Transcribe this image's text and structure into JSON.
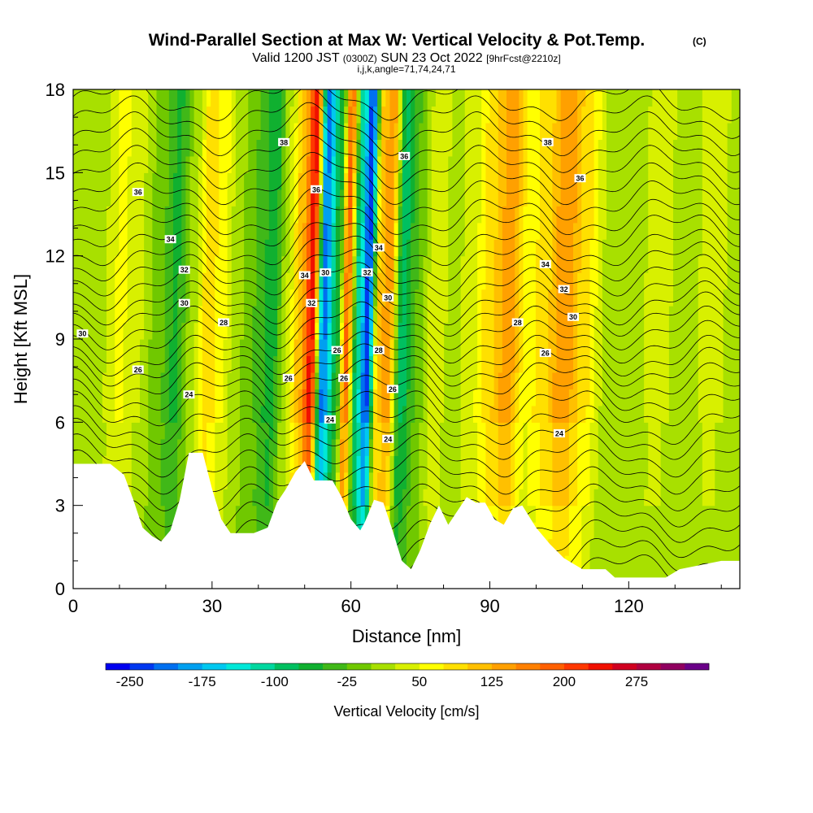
{
  "header": {
    "title": "Wind-Parallel Section at Max W: Vertical Velocity & Pot.Temp.",
    "title_mark": "(C)",
    "valid_prefix": "Valid 1200 JST",
    "valid_zulu": "(0300Z)",
    "valid_date": "SUN 23 Oct 2022",
    "forecast": "[9hrFcst@2210z]",
    "indices": "i,j,k,angle=71,74,24,71"
  },
  "chart_data": {
    "type": "heatmap",
    "title": "Wind-Parallel Section at Max W: Vertical Velocity & Pot.Temp.",
    "xlabel": "Distance [nm]",
    "ylabel": "Height [Kft MSL]",
    "xlim": [
      0,
      144
    ],
    "ylim": [
      0,
      18
    ],
    "x_ticks": [
      0,
      30,
      60,
      90,
      120
    ],
    "y_ticks": [
      0,
      3,
      6,
      9,
      12,
      15,
      18
    ],
    "grid": false,
    "colorbar": {
      "label": "Vertical Velocity [cm/s]",
      "placement": "bottom",
      "tick_labels": [
        "-250",
        "-175",
        "-100",
        "-25",
        "50",
        "125",
        "200",
        "275"
      ],
      "min": -275,
      "max": 325,
      "step": 25,
      "colors": [
        "#0000f0",
        "#0038f0",
        "#0070f0",
        "#00a0f0",
        "#00c8f0",
        "#00e8d8",
        "#00d8a0",
        "#00c060",
        "#10b030",
        "#40b818",
        "#70c800",
        "#a8e000",
        "#d8f000",
        "#ffff00",
        "#ffe000",
        "#ffc000",
        "#ffa000",
        "#ff8000",
        "#ff6000",
        "#ff3800",
        "#f01000",
        "#d00020",
        "#b00040",
        "#900060",
        "#6a0088"
      ]
    },
    "terrain_height_kft": [
      {
        "x": 0,
        "y": 4.5
      },
      {
        "x": 8,
        "y": 4.5
      },
      {
        "x": 11,
        "y": 4.1
      },
      {
        "x": 13,
        "y": 3.2
      },
      {
        "x": 15,
        "y": 2.2
      },
      {
        "x": 17,
        "y": 1.9
      },
      {
        "x": 19,
        "y": 1.7
      },
      {
        "x": 21,
        "y": 2.1
      },
      {
        "x": 23,
        "y": 3.2
      },
      {
        "x": 25,
        "y": 4.9
      },
      {
        "x": 28,
        "y": 4.9
      },
      {
        "x": 30,
        "y": 3.6
      },
      {
        "x": 32,
        "y": 2.5
      },
      {
        "x": 34,
        "y": 2.0
      },
      {
        "x": 39,
        "y": 2.0
      },
      {
        "x": 42,
        "y": 2.2
      },
      {
        "x": 44,
        "y": 3.1
      },
      {
        "x": 46,
        "y": 3.6
      },
      {
        "x": 48,
        "y": 4.2
      },
      {
        "x": 50,
        "y": 4.6
      },
      {
        "x": 52,
        "y": 3.9
      },
      {
        "x": 56,
        "y": 3.9
      },
      {
        "x": 58,
        "y": 3.3
      },
      {
        "x": 60,
        "y": 2.5
      },
      {
        "x": 62,
        "y": 2.1
      },
      {
        "x": 63,
        "y": 2.4
      },
      {
        "x": 65,
        "y": 3.2
      },
      {
        "x": 67,
        "y": 3.1
      },
      {
        "x": 69,
        "y": 2.1
      },
      {
        "x": 71,
        "y": 1.0
      },
      {
        "x": 73,
        "y": 0.7
      },
      {
        "x": 75,
        "y": 1.4
      },
      {
        "x": 77,
        "y": 2.3
      },
      {
        "x": 79,
        "y": 3.0
      },
      {
        "x": 81,
        "y": 2.3
      },
      {
        "x": 83,
        "y": 2.8
      },
      {
        "x": 85,
        "y": 3.3
      },
      {
        "x": 87,
        "y": 3.1
      },
      {
        "x": 89,
        "y": 3.1
      },
      {
        "x": 91,
        "y": 2.5
      },
      {
        "x": 93,
        "y": 2.3
      },
      {
        "x": 95,
        "y": 2.9
      },
      {
        "x": 97,
        "y": 3.0
      },
      {
        "x": 100,
        "y": 2.2
      },
      {
        "x": 103,
        "y": 1.6
      },
      {
        "x": 106,
        "y": 1.1
      },
      {
        "x": 110,
        "y": 0.7
      },
      {
        "x": 115,
        "y": 0.7
      },
      {
        "x": 117,
        "y": 0.4
      },
      {
        "x": 128,
        "y": 0.4
      },
      {
        "x": 131,
        "y": 0.7
      },
      {
        "x": 140,
        "y": 1.0
      },
      {
        "x": 144,
        "y": 1.0
      }
    ],
    "w_bands": [
      {
        "x": 0,
        "w": 0
      },
      {
        "x": 5,
        "w": 10
      },
      {
        "x": 10,
        "w": 55
      },
      {
        "x": 14,
        "w": 30
      },
      {
        "x": 18,
        "w": -10
      },
      {
        "x": 22,
        "w": -55
      },
      {
        "x": 26,
        "w": 20
      },
      {
        "x": 29,
        "w": 95
      },
      {
        "x": 32,
        "w": 60
      },
      {
        "x": 35,
        "w": 10
      },
      {
        "x": 39,
        "w": -25
      },
      {
        "x": 43,
        "w": -65
      },
      {
        "x": 46,
        "w": 25
      },
      {
        "x": 49,
        "w": 120
      },
      {
        "x": 51.5,
        "w": 240
      },
      {
        "x": 54,
        "w": -210
      },
      {
        "x": 57,
        "w": -60
      },
      {
        "x": 59,
        "w": 180
      },
      {
        "x": 61.5,
        "w": -110
      },
      {
        "x": 63.5,
        "w": -240
      },
      {
        "x": 66,
        "w": 110
      },
      {
        "x": 68,
        "w": 150
      },
      {
        "x": 71,
        "w": -90
      },
      {
        "x": 74,
        "w": -25
      },
      {
        "x": 78,
        "w": 45
      },
      {
        "x": 82,
        "w": 15
      },
      {
        "x": 86,
        "w": 40
      },
      {
        "x": 90,
        "w": 95
      },
      {
        "x": 94,
        "w": 140
      },
      {
        "x": 98,
        "w": 60
      },
      {
        "x": 102,
        "w": 95
      },
      {
        "x": 106,
        "w": 150
      },
      {
        "x": 110,
        "w": 90
      },
      {
        "x": 115,
        "w": 20
      },
      {
        "x": 120,
        "w": 10
      },
      {
        "x": 126,
        "w": 35
      },
      {
        "x": 132,
        "w": 15
      },
      {
        "x": 138,
        "w": 35
      },
      {
        "x": 144,
        "w": 10
      }
    ],
    "theta_isentropes": [
      {
        "base_kft": 0.6,
        "label": ""
      },
      {
        "base_kft": 1.2,
        "label": ""
      },
      {
        "base_kft": 1.8,
        "label": ""
      },
      {
        "base_kft": 2.4,
        "label": ""
      },
      {
        "base_kft": 3.0,
        "label": ""
      },
      {
        "base_kft": 3.6,
        "label": ""
      },
      {
        "base_kft": 4.2,
        "label": ""
      },
      {
        "base_kft": 4.8,
        "label": ""
      },
      {
        "base_kft": 5.4,
        "label": ""
      },
      {
        "base_kft": 5.9,
        "label": "24"
      },
      {
        "base_kft": 6.5,
        "label": ""
      },
      {
        "base_kft": 7.0,
        "label": "26"
      },
      {
        "base_kft": 7.5,
        "label": ""
      },
      {
        "base_kft": 8.0,
        "label": ""
      },
      {
        "base_kft": 8.4,
        "label": "28"
      },
      {
        "base_kft": 8.9,
        "label": ""
      },
      {
        "base_kft": 9.4,
        "label": "30"
      },
      {
        "base_kft": 9.9,
        "label": ""
      },
      {
        "base_kft": 10.3,
        "label": "32"
      },
      {
        "base_kft": 10.8,
        "label": ""
      },
      {
        "base_kft": 11.3,
        "label": "34"
      },
      {
        "base_kft": 11.8,
        "label": ""
      },
      {
        "base_kft": 12.3,
        "label": ""
      },
      {
        "base_kft": 12.9,
        "label": "36"
      },
      {
        "base_kft": 13.4,
        "label": ""
      },
      {
        "base_kft": 14.0,
        "label": ""
      },
      {
        "base_kft": 14.6,
        "label": ""
      },
      {
        "base_kft": 15.2,
        "label": "38"
      },
      {
        "base_kft": 15.8,
        "label": ""
      },
      {
        "base_kft": 16.4,
        "label": ""
      },
      {
        "base_kft": 17.0,
        "label": ""
      },
      {
        "base_kft": 17.6,
        "label": ""
      }
    ],
    "contour_labels": [
      {
        "text": "38",
        "x": 45.5,
        "y": 16.1
      },
      {
        "text": "36",
        "x": 71.5,
        "y": 15.6
      },
      {
        "text": "38",
        "x": 102.5,
        "y": 16.1
      },
      {
        "text": "36",
        "x": 109.5,
        "y": 14.8
      },
      {
        "text": "36",
        "x": 14,
        "y": 14.3
      },
      {
        "text": "36",
        "x": 52.5,
        "y": 14.4
      },
      {
        "text": "34",
        "x": 21,
        "y": 12.6
      },
      {
        "text": "34",
        "x": 66,
        "y": 12.3
      },
      {
        "text": "34",
        "x": 102,
        "y": 11.7
      },
      {
        "text": "32",
        "x": 24,
        "y": 11.5
      },
      {
        "text": "34",
        "x": 50,
        "y": 11.3
      },
      {
        "text": "30",
        "x": 54.5,
        "y": 11.4
      },
      {
        "text": "32",
        "x": 63.5,
        "y": 11.4
      },
      {
        "text": "32",
        "x": 106,
        "y": 10.8
      },
      {
        "text": "30",
        "x": 24,
        "y": 10.3
      },
      {
        "text": "32",
        "x": 51.5,
        "y": 10.3
      },
      {
        "text": "30",
        "x": 68,
        "y": 10.5
      },
      {
        "text": "30",
        "x": 108,
        "y": 9.8
      },
      {
        "text": "28",
        "x": 32.5,
        "y": 9.6
      },
      {
        "text": "28",
        "x": 96,
        "y": 9.6
      },
      {
        "text": "30",
        "x": 2,
        "y": 9.2
      },
      {
        "text": "26",
        "x": 57,
        "y": 8.6
      },
      {
        "text": "28",
        "x": 66,
        "y": 8.6
      },
      {
        "text": "26",
        "x": 102,
        "y": 8.5
      },
      {
        "text": "26",
        "x": 14,
        "y": 7.9
      },
      {
        "text": "26",
        "x": 46.5,
        "y": 7.6
      },
      {
        "text": "26",
        "x": 58.5,
        "y": 7.6
      },
      {
        "text": "26",
        "x": 69,
        "y": 7.2
      },
      {
        "text": "24",
        "x": 25,
        "y": 7.0
      },
      {
        "text": "24",
        "x": 55.5,
        "y": 6.1
      },
      {
        "text": "24",
        "x": 68,
        "y": 5.4
      },
      {
        "text": "24",
        "x": 105,
        "y": 5.6
      }
    ]
  }
}
